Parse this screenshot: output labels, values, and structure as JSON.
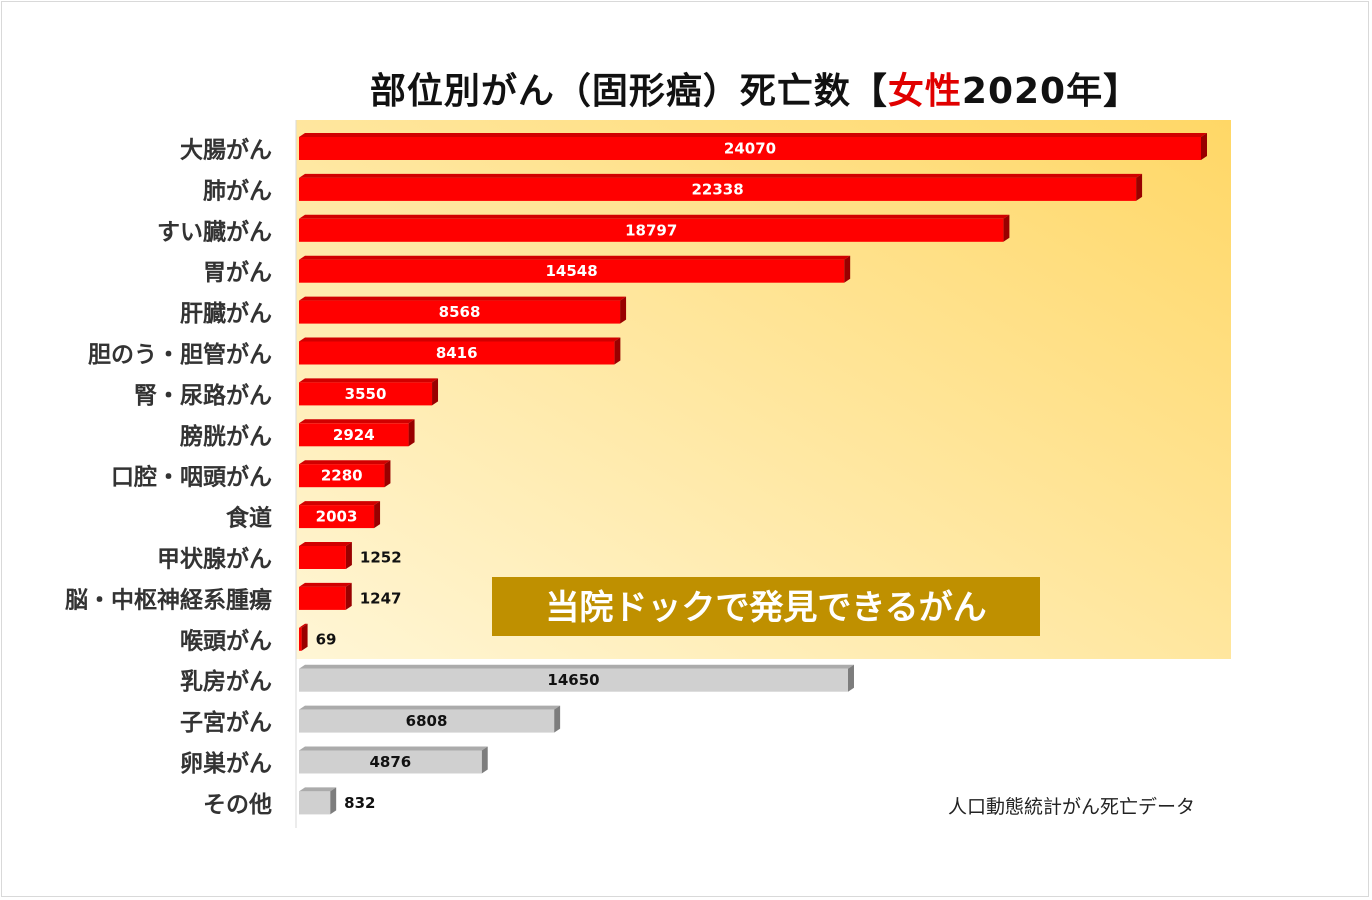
{
  "title": {
    "prefix": "部位別がん（固形癌）死亡数【",
    "accent": "女性",
    "suffix": "2020年】"
  },
  "highlight_label": "当院ドックで発見できるがん",
  "source_note": "人口動態統計がん死亡データ",
  "colors": {
    "highlight_bar": "#ff0000",
    "other_bar": "#d0d0d0",
    "highlight_band_top": "#ffd766",
    "highlight_band_bottom": "#fff6d6",
    "badge": "#bf9000"
  },
  "chart_data": {
    "type": "bar",
    "orientation": "horizontal",
    "categories": [
      "大腸がん",
      "肺がん",
      "すい臓がん",
      "胃がん",
      "肝臓がん",
      "胆のう・胆管がん",
      "腎・尿路がん",
      "膀胱がん",
      "口腔・咽頭がん",
      "食道",
      "甲状腺がん",
      "脳・中枢神経系腫瘍",
      "喉頭がん",
      "乳房がん",
      "子宮がん",
      "卵巣がん",
      "その他"
    ],
    "values": [
      24070,
      22338,
      18797,
      14548,
      8568,
      8416,
      3550,
      2924,
      2280,
      2003,
      1252,
      1247,
      69,
      14650,
      6808,
      4876,
      832
    ],
    "highlighted": [
      true,
      true,
      true,
      true,
      true,
      true,
      true,
      true,
      true,
      true,
      true,
      true,
      true,
      false,
      false,
      false,
      false
    ],
    "xlim": [
      0,
      24500
    ],
    "grid": false,
    "legend": "none"
  }
}
